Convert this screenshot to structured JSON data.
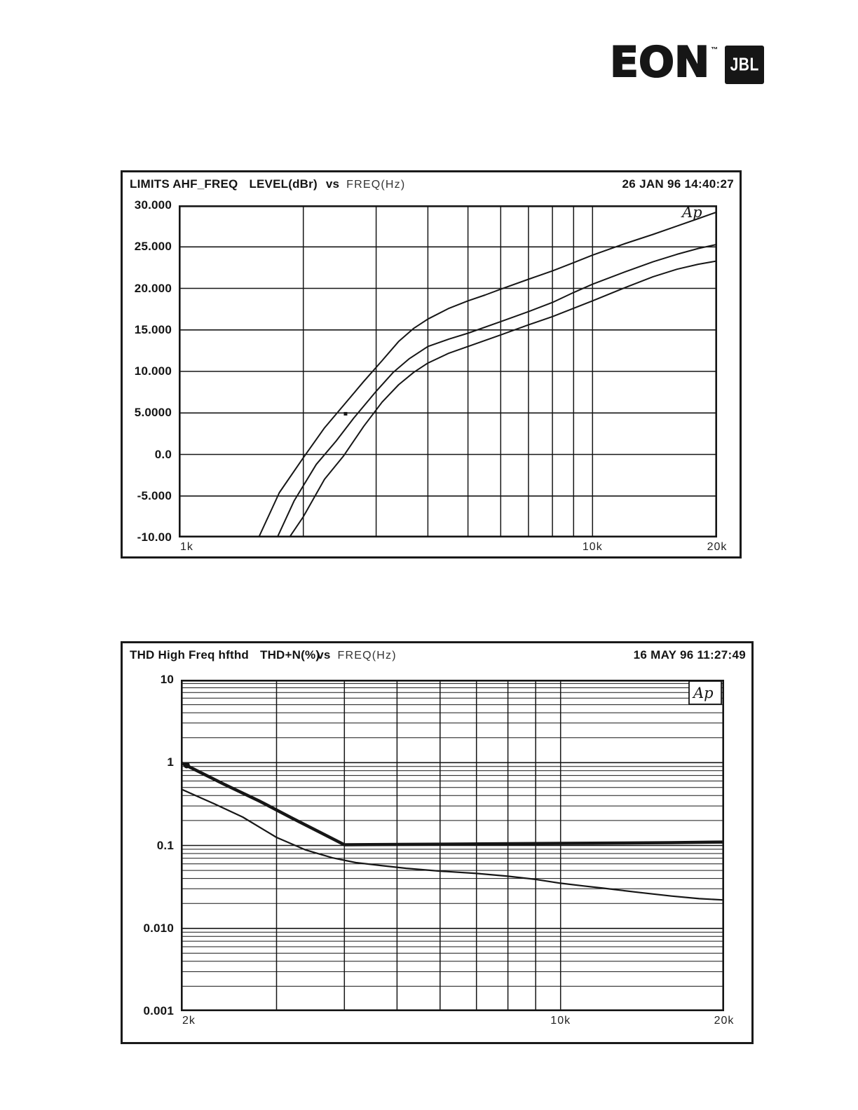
{
  "logo": {
    "eon": "EON",
    "tm": "™",
    "jbl": "JBL",
    "box_color": "#161616"
  },
  "ink_color": "#161616",
  "chart_data": [
    {
      "id": "limits-level-vs-freq",
      "type": "line",
      "title_parts": {
        "name": "LIMITS AHF_FREQ",
        "quantity": "LEVEL(dBr)",
        "vs": "vs",
        "x_quantity": "FREQ(Hz)"
      },
      "timestamp": "26 JAN 96 14:40:27",
      "ap_label": "Ap",
      "ap_boxed": false,
      "x_scale": "log",
      "y_scale": "linear",
      "xlabel": "FREQ(Hz)",
      "ylabel": "LEVEL(dBr)",
      "x_range_hz": [
        1000,
        20000
      ],
      "y_range": [
        -10,
        30
      ],
      "grid": true,
      "x_gridlines_hz": [
        1000,
        2000,
        3000,
        4000,
        5000,
        6000,
        7000,
        8000,
        9000,
        10000,
        20000
      ],
      "x_ticks": [
        {
          "hz": 1000,
          "label": "1k",
          "anchor": "start"
        },
        {
          "hz": 10000,
          "label": "10k",
          "anchor": "middle"
        },
        {
          "hz": 20000,
          "label": "20k",
          "anchor": "middle"
        }
      ],
      "y_gridlines": [
        30,
        25,
        20,
        15,
        10,
        5,
        0,
        -5,
        -10
      ],
      "y_minor_gridlines": [],
      "y_ticks": [
        {
          "v": 30,
          "label": "30.000"
        },
        {
          "v": 25,
          "label": "25.000"
        },
        {
          "v": 20,
          "label": "20.000"
        },
        {
          "v": 15,
          "label": "15.000"
        },
        {
          "v": 10,
          "label": "10.000"
        },
        {
          "v": 5,
          "label": "5.0000"
        },
        {
          "v": 0,
          "label": "0.0"
        },
        {
          "v": -5,
          "label": "-5.000"
        },
        {
          "v": -10,
          "label": "-10.00"
        }
      ],
      "series": [
        {
          "name": "upper-limit-curve",
          "stroke_width": 2,
          "points": [
            [
              1560,
              -10
            ],
            [
              1750,
              -4.6
            ],
            [
              2000,
              -0.4
            ],
            [
              2250,
              3.2
            ],
            [
              2530,
              6.2
            ],
            [
              2800,
              8.8
            ],
            [
              3100,
              11.3
            ],
            [
              3400,
              13.6
            ],
            [
              3700,
              15.2
            ],
            [
              4000,
              16.3
            ],
            [
              4500,
              17.6
            ],
            [
              5000,
              18.5
            ],
            [
              5500,
              19.2
            ],
            [
              6000,
              19.9
            ],
            [
              7000,
              21.1
            ],
            [
              8000,
              22.1
            ],
            [
              9000,
              23.1
            ],
            [
              10000,
              24.0
            ],
            [
              12000,
              25.4
            ],
            [
              14000,
              26.5
            ],
            [
              16000,
              27.5
            ],
            [
              18000,
              28.4
            ],
            [
              20000,
              29.2
            ]
          ]
        },
        {
          "name": "middle-response-curve",
          "stroke_width": 2,
          "points": [
            [
              1730,
              -10
            ],
            [
              1900,
              -5.6
            ],
            [
              2150,
              -1.2
            ],
            [
              2400,
              1.6
            ],
            [
              2650,
              4.4
            ],
            [
              3000,
              7.6
            ],
            [
              3300,
              9.9
            ],
            [
              3600,
              11.5
            ],
            [
              4000,
              13.0
            ],
            [
              4500,
              13.9
            ],
            [
              5000,
              14.6
            ],
            [
              6000,
              16.0
            ],
            [
              7000,
              17.2
            ],
            [
              8000,
              18.3
            ],
            [
              9000,
              19.5
            ],
            [
              10000,
              20.5
            ],
            [
              12000,
              22.0
            ],
            [
              14000,
              23.2
            ],
            [
              16000,
              24.1
            ],
            [
              18000,
              24.8
            ],
            [
              20000,
              25.3
            ]
          ]
        },
        {
          "name": "lower-limit-curve",
          "stroke_width": 2,
          "points": [
            [
              1850,
              -10
            ],
            [
              2000,
              -7.5
            ],
            [
              2250,
              -3.0
            ],
            [
              2500,
              -0.2
            ],
            [
              2800,
              3.4
            ],
            [
              3100,
              6.3
            ],
            [
              3400,
              8.4
            ],
            [
              3700,
              9.9
            ],
            [
              4000,
              11.0
            ],
            [
              4500,
              12.2
            ],
            [
              5000,
              13.0
            ],
            [
              6000,
              14.4
            ],
            [
              7000,
              15.6
            ],
            [
              8000,
              16.6
            ],
            [
              9000,
              17.6
            ],
            [
              10000,
              18.5
            ],
            [
              12000,
              20.1
            ],
            [
              14000,
              21.4
            ],
            [
              16000,
              22.3
            ],
            [
              18000,
              22.9
            ],
            [
              20000,
              23.3
            ]
          ]
        }
      ],
      "markers": [
        {
          "hz": 2530,
          "v": 4.9,
          "shape": "square",
          "size": 5
        }
      ]
    },
    {
      "id": "thd-vs-freq",
      "type": "line",
      "title_parts": {
        "name": "THD High Freq  hfthd",
        "quantity": "THD+N(%)",
        "vs": "vs",
        "x_quantity": "FREQ(Hz)"
      },
      "timestamp": "16 MAY 96 11:27:49",
      "ap_label": "Ap",
      "ap_boxed": true,
      "x_scale": "log",
      "y_scale": "log",
      "xlabel": "FREQ(Hz)",
      "ylabel": "THD+N(%)",
      "x_range_hz": [
        2000,
        20000
      ],
      "y_range": [
        0.001,
        10
      ],
      "grid": true,
      "x_gridlines_hz": [
        2000,
        3000,
        4000,
        5000,
        6000,
        7000,
        8000,
        9000,
        10000,
        20000
      ],
      "x_ticks": [
        {
          "hz": 2000,
          "label": "2k",
          "anchor": "start"
        },
        {
          "hz": 10000,
          "label": "10k",
          "anchor": "middle"
        },
        {
          "hz": 20000,
          "label": "20k",
          "anchor": "middle"
        }
      ],
      "y_gridlines": [
        10,
        1,
        0.1,
        0.01,
        0.001
      ],
      "y_minor_gridlines": [
        9,
        8,
        7,
        6,
        5,
        4,
        3,
        2,
        0.9,
        0.8,
        0.7,
        0.6,
        0.5,
        0.4,
        0.3,
        0.2,
        0.09,
        0.08,
        0.07,
        0.06,
        0.05,
        0.04,
        0.03,
        0.02,
        0.009,
        0.008,
        0.007,
        0.006,
        0.005,
        0.004,
        0.003,
        0.002
      ],
      "y_ticks": [
        {
          "v": 10,
          "label": "10"
        },
        {
          "v": 1,
          "label": "1"
        },
        {
          "v": 0.1,
          "label": "0.1"
        },
        {
          "v": 0.01,
          "label": "0.010"
        },
        {
          "v": 0.001,
          "label": "0.001"
        }
      ],
      "series": [
        {
          "name": "thd-limit-curve-thick",
          "stroke_width": 4.5,
          "points": [
            [
              2000,
              1.0
            ],
            [
              2400,
              0.55
            ],
            [
              2800,
              0.34
            ],
            [
              3200,
              0.215
            ],
            [
              3600,
              0.145
            ],
            [
              4000,
              0.102
            ],
            [
              5000,
              0.103
            ],
            [
              6500,
              0.104
            ],
            [
              8000,
              0.105
            ],
            [
              10000,
              0.106
            ],
            [
              13000,
              0.107
            ],
            [
              16000,
              0.108
            ],
            [
              20000,
              0.11
            ]
          ]
        },
        {
          "name": "thd-measured-curve",
          "stroke_width": 2.2,
          "points": [
            [
              2000,
              0.48
            ],
            [
              2300,
              0.32
            ],
            [
              2600,
              0.22
            ],
            [
              3000,
              0.125
            ],
            [
              3400,
              0.088
            ],
            [
              3800,
              0.071
            ],
            [
              4200,
              0.062
            ],
            [
              4700,
              0.057
            ],
            [
              5200,
              0.053
            ],
            [
              6000,
              0.049
            ],
            [
              7000,
              0.046
            ],
            [
              8000,
              0.0425
            ],
            [
              9000,
              0.039
            ],
            [
              10000,
              0.035
            ],
            [
              11000,
              0.0325
            ],
            [
              12000,
              0.0305
            ],
            [
              14000,
              0.027
            ],
            [
              16000,
              0.0245
            ],
            [
              18000,
              0.0228
            ],
            [
              20000,
              0.022
            ]
          ]
        }
      ],
      "markers": [
        {
          "hz": 2050,
          "v": 0.93,
          "shape": "circle",
          "size": 9
        }
      ]
    }
  ]
}
